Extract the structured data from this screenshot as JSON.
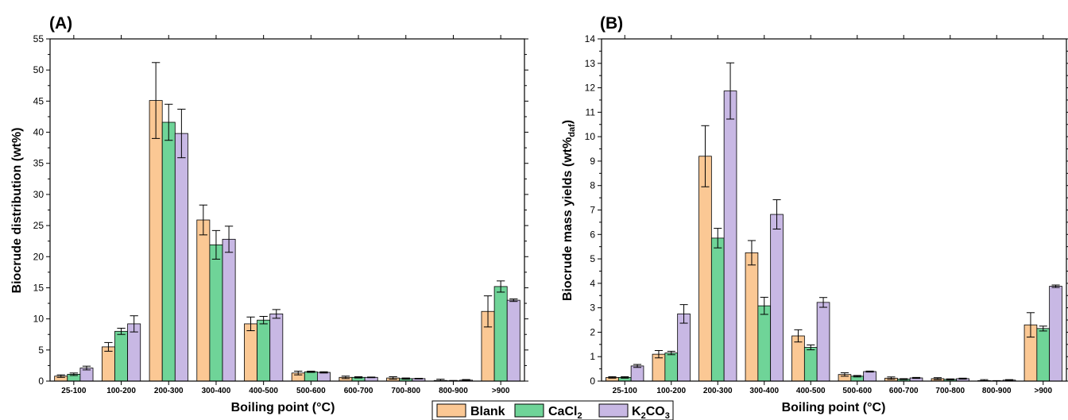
{
  "panels": [
    {
      "panel_label": "(A)",
      "xlabel": "Boiling point (°C)",
      "ylabel": "Biocrude distribution (wt%)"
    },
    {
      "panel_label": "(B)",
      "xlabel": "Boiling point (°C)",
      "ylabel_main": "Biocrude mass yields (wt%",
      "ylabel_sub": "daf",
      "ylabel_end": ")"
    }
  ],
  "legend": [
    {
      "main": "Blank",
      "sub": "",
      "tail": "",
      "color": "#fbc894"
    },
    {
      "main": "CaCl",
      "sub": "2",
      "tail": "",
      "color": "#6fd498"
    },
    {
      "main": "K",
      "sub": "2",
      "tail": "CO",
      "sub2": "3",
      "color": "#c8b8e4"
    }
  ],
  "chart_data": [
    {
      "type": "bar",
      "title": "(A)",
      "xlabel": "Boiling point (°C)",
      "ylabel": "Biocrude distribution (wt%)",
      "ylim": [
        0,
        55
      ],
      "yticks": [
        0,
        5,
        10,
        15,
        20,
        25,
        30,
        35,
        40,
        45,
        50,
        55
      ],
      "grid": false,
      "categories": [
        "25-100",
        "100-200",
        "200-300",
        "300-400",
        "400-500",
        "500-600",
        "600-700",
        "700-800",
        "800-900",
        ">900"
      ],
      "series": [
        {
          "name": "Blank",
          "color": "#fbc894",
          "values": [
            0.8,
            5.5,
            45.1,
            25.9,
            9.2,
            1.3,
            0.6,
            0.5,
            0.1,
            11.2
          ],
          "errors": [
            0.2,
            0.7,
            6.1,
            2.4,
            1.1,
            0.3,
            0.2,
            0.2,
            0.2,
            2.5
          ]
        },
        {
          "name": "CaCl2",
          "color": "#6fd498",
          "values": [
            1.1,
            8.0,
            41.6,
            21.9,
            9.8,
            1.5,
            0.6,
            0.4,
            0.05,
            15.2
          ],
          "errors": [
            0.2,
            0.5,
            2.9,
            2.3,
            0.6,
            0.1,
            0.1,
            0.1,
            0.05,
            0.9
          ]
        },
        {
          "name": "K2CO3",
          "color": "#c8b8e4",
          "values": [
            2.1,
            9.2,
            39.8,
            22.8,
            10.8,
            1.4,
            0.6,
            0.4,
            0.15,
            13.0
          ],
          "errors": [
            0.3,
            1.3,
            3.9,
            2.1,
            0.7,
            0.1,
            0.05,
            0.05,
            0.1,
            0.2
          ]
        }
      ]
    },
    {
      "type": "bar",
      "title": "(B)",
      "xlabel": "Boiling point (°C)",
      "ylabel": "Biocrude mass yields (wt%daf)",
      "ylim": [
        0,
        14
      ],
      "yticks": [
        0,
        1,
        2,
        3,
        4,
        5,
        6,
        7,
        8,
        9,
        10,
        11,
        12,
        13,
        14
      ],
      "grid": false,
      "categories": [
        "25-100",
        "100-200",
        "200-300",
        "300-400",
        "400-500",
        "500-600",
        "600-700",
        "700-800",
        "800-900",
        ">900"
      ],
      "series": [
        {
          "name": "Blank",
          "color": "#fbc894",
          "values": [
            0.15,
            1.1,
            9.2,
            5.25,
            1.85,
            0.27,
            0.12,
            0.1,
            0.02,
            2.3
          ],
          "errors": [
            0.03,
            0.15,
            1.25,
            0.5,
            0.25,
            0.07,
            0.05,
            0.04,
            0.04,
            0.5
          ]
        },
        {
          "name": "CaCl2",
          "color": "#6fd498",
          "values": [
            0.15,
            1.15,
            5.85,
            3.08,
            1.38,
            0.2,
            0.08,
            0.07,
            0.01,
            2.15
          ],
          "errors": [
            0.03,
            0.07,
            0.4,
            0.35,
            0.1,
            0.03,
            0.02,
            0.02,
            0.01,
            0.1
          ]
        },
        {
          "name": "K2CO3",
          "color": "#c8b8e4",
          "values": [
            0.62,
            2.75,
            11.87,
            6.82,
            3.22,
            0.39,
            0.13,
            0.1,
            0.04,
            3.88
          ],
          "errors": [
            0.06,
            0.38,
            1.15,
            0.6,
            0.2,
            0.02,
            0.02,
            0.02,
            0.02,
            0.05
          ]
        }
      ]
    }
  ]
}
